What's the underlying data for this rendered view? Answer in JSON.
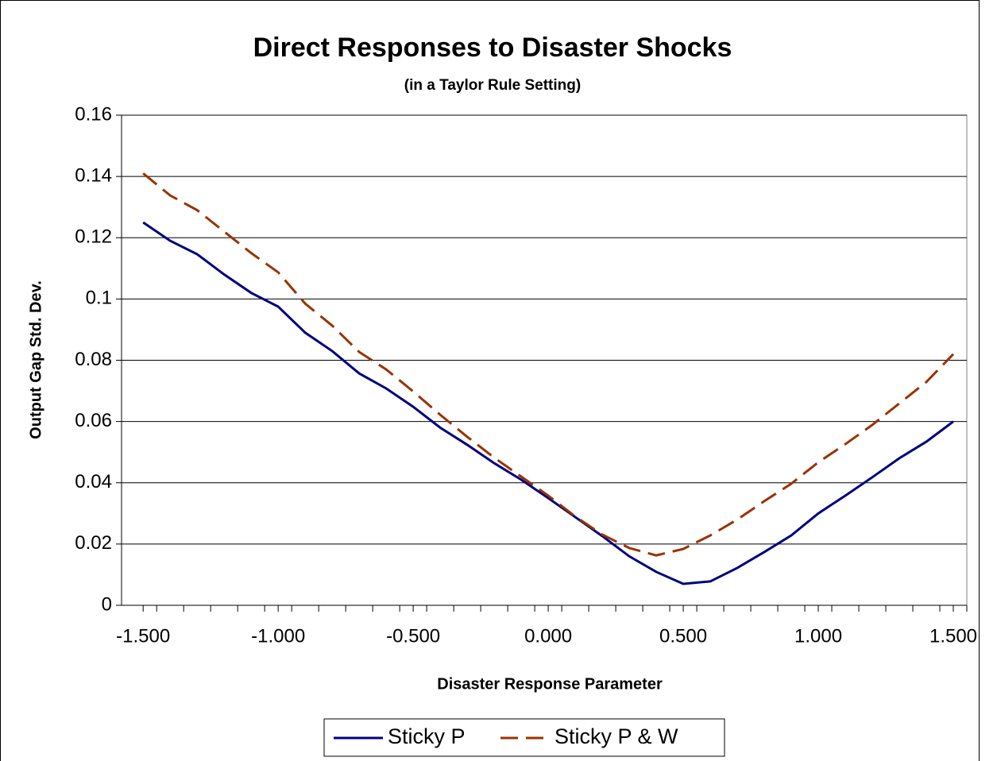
{
  "chart_data": {
    "type": "line",
    "title": "Direct Responses to Disaster Shocks",
    "subtitle": "(in a Taylor Rule Setting)",
    "x_label": "Disaster Response Parameter",
    "y_label": "Output Gap Std. Dev.",
    "x": [
      -1.5,
      -1.4,
      -1.3,
      -1.2,
      -1.1,
      -1.0,
      -0.9,
      -0.8,
      -0.7,
      -0.6,
      -0.5,
      -0.4,
      -0.3,
      -0.2,
      -0.1,
      0,
      0.1,
      0.2,
      0.3,
      0.4,
      0.5,
      0.6,
      0.7,
      0.8,
      0.9,
      1.0,
      1.1,
      1.2,
      1.3,
      1.4,
      1.5
    ],
    "series": [
      {
        "name": "Sticky P",
        "color": "#000080",
        "dash": false,
        "values": [
          0.125,
          0.119,
          0.1146,
          0.108,
          0.102,
          0.0975,
          0.089,
          0.083,
          0.0757,
          0.0708,
          0.0648,
          0.058,
          0.0524,
          0.0464,
          0.041,
          0.035,
          0.0288,
          0.0226,
          0.016,
          0.0109,
          0.007,
          0.0078,
          0.0122,
          0.0174,
          0.0228,
          0.03,
          0.0358,
          0.0418,
          0.048,
          0.0534,
          0.06
        ]
      },
      {
        "name": "Sticky P & W",
        "color": "#993300",
        "dash": true,
        "values": [
          0.141,
          0.1338,
          0.129,
          0.122,
          0.115,
          0.1087,
          0.0985,
          0.0913,
          0.0827,
          0.077,
          0.0698,
          0.0622,
          0.055,
          0.0482,
          0.042,
          0.0358,
          0.029,
          0.0231,
          0.0187,
          0.0163,
          0.0184,
          0.0228,
          0.028,
          0.034,
          0.0397,
          0.0467,
          0.0526,
          0.0589,
          0.0659,
          0.0729,
          0.082
        ]
      }
    ],
    "xlim": [
      -1.58,
      1.55
    ],
    "xticks": [
      {
        "value": -1.5,
        "label": "-1.500"
      },
      {
        "value": -1.0,
        "label": "-1.000"
      },
      {
        "value": -0.5,
        "label": "-0.500"
      },
      {
        "value": 0,
        "label": "0.000"
      },
      {
        "value": 0.5,
        "label": "0.500"
      },
      {
        "value": 1.0,
        "label": "1.000"
      },
      {
        "value": 1.5,
        "label": "1.500"
      }
    ],
    "ylim": [
      0,
      0.16
    ],
    "yticks": [
      0,
      0.02,
      0.04,
      0.06,
      0.08,
      0.1,
      0.12,
      0.14,
      0.16
    ],
    "grid": true,
    "legend": "bottom"
  }
}
